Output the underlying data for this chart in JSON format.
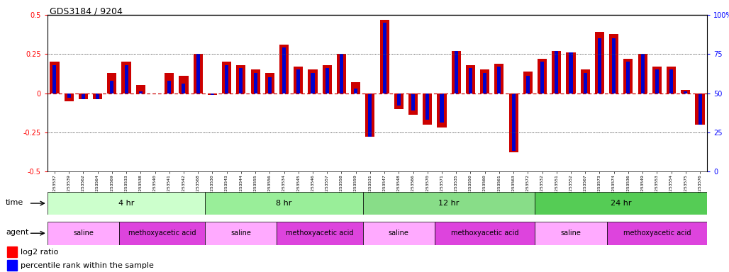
{
  "title": "GDS3184 / 9204",
  "samples": [
    "GSM253537",
    "GSM253539",
    "GSM253562",
    "GSM253564",
    "GSM253569",
    "GSM253533",
    "GSM253538",
    "GSM253540",
    "GSM253541",
    "GSM253542",
    "GSM253568",
    "GSM253530",
    "GSM253543",
    "GSM253544",
    "GSM253555",
    "GSM253556",
    "GSM253534",
    "GSM253545",
    "GSM253546",
    "GSM253557",
    "GSM253558",
    "GSM253559",
    "GSM253531",
    "GSM253547",
    "GSM253548",
    "GSM253566",
    "GSM253570",
    "GSM253571",
    "GSM253535",
    "GSM253550",
    "GSM253560",
    "GSM253561",
    "GSM253563",
    "GSM253572",
    "GSM253532",
    "GSM253551",
    "GSM253552",
    "GSM253567",
    "GSM253573",
    "GSM253574",
    "GSM253536",
    "GSM253549",
    "GSM253553",
    "GSM253554",
    "GSM253575",
    "GSM253576"
  ],
  "log2_ratio": [
    0.2,
    -0.05,
    -0.04,
    -0.04,
    0.13,
    0.2,
    0.05,
    0.0,
    0.13,
    0.11,
    0.25,
    -0.01,
    0.2,
    0.18,
    0.15,
    0.13,
    0.31,
    0.17,
    0.15,
    0.18,
    0.25,
    0.07,
    -0.28,
    0.47,
    -0.1,
    -0.14,
    -0.2,
    -0.22,
    0.27,
    0.18,
    0.15,
    0.19,
    -0.38,
    0.14,
    0.22,
    0.27,
    0.26,
    0.15,
    0.39,
    0.38,
    0.22,
    0.25,
    0.17,
    0.17,
    0.02,
    -0.2
  ],
  "percentile": [
    68,
    47,
    46,
    46,
    58,
    68,
    51,
    50,
    58,
    56,
    75,
    49,
    68,
    66,
    63,
    60,
    79,
    65,
    63,
    66,
    75,
    53,
    22,
    95,
    42,
    39,
    33,
    31,
    77,
    66,
    63,
    67,
    13,
    61,
    70,
    77,
    76,
    63,
    85,
    85,
    70,
    75,
    65,
    65,
    51,
    30
  ],
  "time_groups": [
    {
      "label": "4 hr",
      "start": 0,
      "end": 11,
      "color": "#ccffcc"
    },
    {
      "label": "8 hr",
      "start": 11,
      "end": 22,
      "color": "#99ee99"
    },
    {
      "label": "12 hr",
      "start": 22,
      "end": 34,
      "color": "#88dd88"
    },
    {
      "label": "24 hr",
      "start": 34,
      "end": 46,
      "color": "#55cc55"
    }
  ],
  "agent_groups": [
    {
      "label": "saline",
      "start": 0,
      "end": 5,
      "color": "#ffaaff"
    },
    {
      "label": "methoxyacetic acid",
      "start": 5,
      "end": 11,
      "color": "#dd44dd"
    },
    {
      "label": "saline",
      "start": 11,
      "end": 16,
      "color": "#ffaaff"
    },
    {
      "label": "methoxyacetic acid",
      "start": 16,
      "end": 22,
      "color": "#dd44dd"
    },
    {
      "label": "saline",
      "start": 22,
      "end": 27,
      "color": "#ffaaff"
    },
    {
      "label": "methoxyacetic acid",
      "start": 27,
      "end": 34,
      "color": "#dd44dd"
    },
    {
      "label": "saline",
      "start": 34,
      "end": 39,
      "color": "#ffaaff"
    },
    {
      "label": "methoxyacetic acid",
      "start": 39,
      "end": 46,
      "color": "#dd44dd"
    }
  ],
  "ylim_left": [
    -0.5,
    0.5
  ],
  "ylim_right": [
    0,
    100
  ],
  "bar_color_red": "#cc0000",
  "bar_color_blue": "#0000cc",
  "hline_color": "#cc0000",
  "dotted_line_color": "#555555",
  "bg_color": "#ffffff"
}
